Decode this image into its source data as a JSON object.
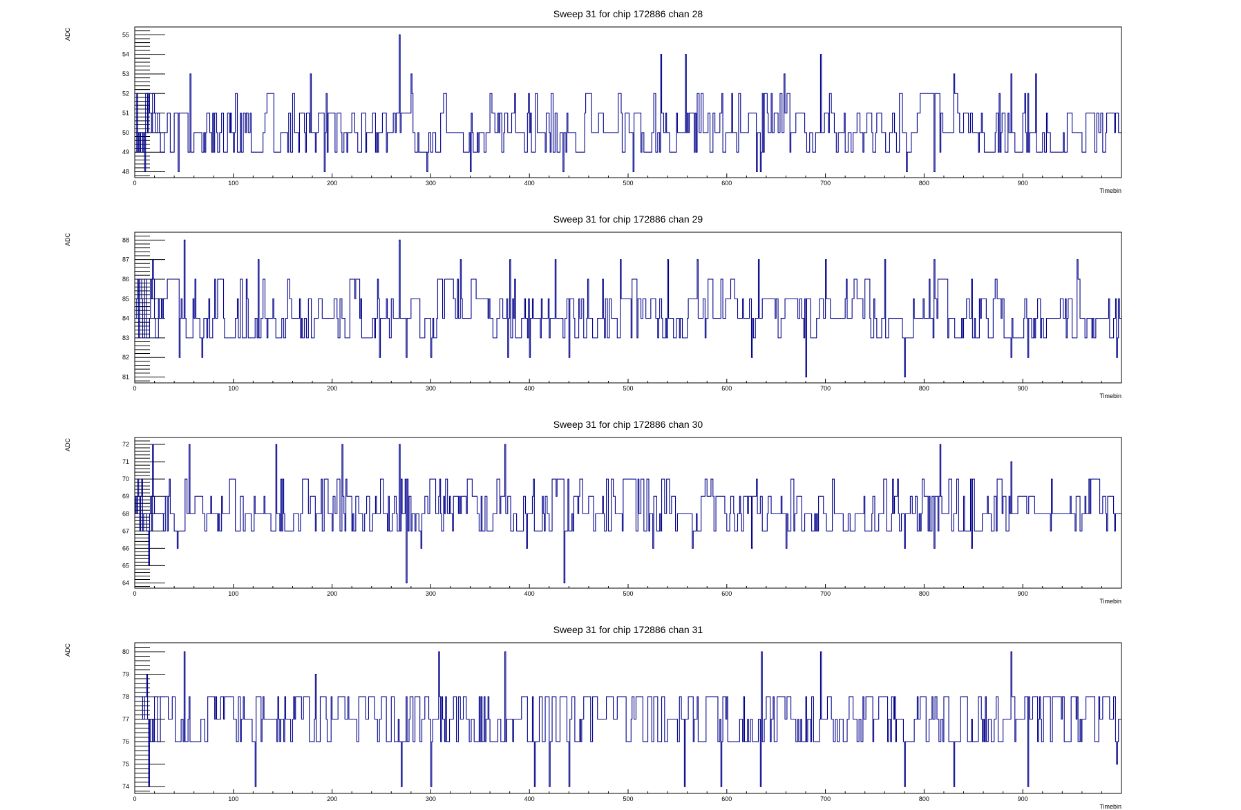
{
  "chart_data": [
    {
      "type": "line",
      "title": "Sweep 31 for chip 172886 chan 28",
      "xlabel": "Timebin",
      "ylabel": "ADC",
      "xlim": [
        0,
        1000
      ],
      "ylim": [
        47.7,
        55.4
      ],
      "x_ticks": [
        0,
        100,
        200,
        300,
        400,
        500,
        600,
        700,
        800,
        900
      ],
      "y_ticks": [
        48,
        49,
        50,
        51,
        52,
        53,
        54,
        55
      ],
      "color": "#00008b",
      "step": true,
      "baseline": 50,
      "levels": [
        49,
        50,
        51,
        52
      ],
      "spikes": [
        {
          "x": 3,
          "value": 49
        },
        {
          "x": 10,
          "value": 48
        },
        {
          "x": 18,
          "value": 52
        },
        {
          "x": 44,
          "value": 48
        },
        {
          "x": 56,
          "value": 53
        },
        {
          "x": 124,
          "value": 49
        },
        {
          "x": 155,
          "value": 49
        },
        {
          "x": 178,
          "value": 53
        },
        {
          "x": 192,
          "value": 48
        },
        {
          "x": 268,
          "value": 55
        },
        {
          "x": 280,
          "value": 53
        },
        {
          "x": 296,
          "value": 48
        },
        {
          "x": 340,
          "value": 48
        },
        {
          "x": 434,
          "value": 48
        },
        {
          "x": 505,
          "value": 48
        },
        {
          "x": 533,
          "value": 54
        },
        {
          "x": 558,
          "value": 54
        },
        {
          "x": 630,
          "value": 48
        },
        {
          "x": 634,
          "value": 48
        },
        {
          "x": 658,
          "value": 53
        },
        {
          "x": 695,
          "value": 54
        },
        {
          "x": 782,
          "value": 48
        },
        {
          "x": 810,
          "value": 48
        },
        {
          "x": 830,
          "value": 53
        },
        {
          "x": 888,
          "value": 53
        },
        {
          "x": 913,
          "value": 53
        },
        {
          "x": 975,
          "value": 51
        }
      ]
    },
    {
      "type": "line",
      "title": "Sweep 31 for chip 172886 chan 29",
      "xlabel": "Timebin",
      "ylabel": "ADC",
      "xlim": [
        0,
        1000
      ],
      "ylim": [
        80.7,
        88.4
      ],
      "x_ticks": [
        0,
        100,
        200,
        300,
        400,
        500,
        600,
        700,
        800,
        900
      ],
      "y_ticks": [
        81,
        82,
        83,
        84,
        85,
        86,
        87,
        88
      ],
      "color": "#00008b",
      "step": true,
      "baseline": 84,
      "levels": [
        83,
        84,
        85,
        86
      ],
      "spikes": [
        {
          "x": 5,
          "value": 86
        },
        {
          "x": 18,
          "value": 87
        },
        {
          "x": 45,
          "value": 82
        },
        {
          "x": 50,
          "value": 88
        },
        {
          "x": 68,
          "value": 82
        },
        {
          "x": 125,
          "value": 87
        },
        {
          "x": 248,
          "value": 82
        },
        {
          "x": 268,
          "value": 88
        },
        {
          "x": 275,
          "value": 82
        },
        {
          "x": 300,
          "value": 82
        },
        {
          "x": 330,
          "value": 87
        },
        {
          "x": 378,
          "value": 82
        },
        {
          "x": 380,
          "value": 87
        },
        {
          "x": 400,
          "value": 82
        },
        {
          "x": 426,
          "value": 87
        },
        {
          "x": 440,
          "value": 82
        },
        {
          "x": 492,
          "value": 87
        },
        {
          "x": 540,
          "value": 87
        },
        {
          "x": 570,
          "value": 87
        },
        {
          "x": 625,
          "value": 82
        },
        {
          "x": 632,
          "value": 87
        },
        {
          "x": 680,
          "value": 81
        },
        {
          "x": 700,
          "value": 87
        },
        {
          "x": 780,
          "value": 81
        },
        {
          "x": 760,
          "value": 87
        },
        {
          "x": 810,
          "value": 87
        },
        {
          "x": 888,
          "value": 82
        },
        {
          "x": 905,
          "value": 82
        },
        {
          "x": 955,
          "value": 87
        },
        {
          "x": 995,
          "value": 82
        }
      ]
    },
    {
      "type": "line",
      "title": "Sweep 31 for chip 172886 chan 30",
      "xlabel": "Timebin",
      "ylabel": "ADC",
      "xlim": [
        0,
        1000
      ],
      "ylim": [
        63.7,
        72.4
      ],
      "x_ticks": [
        0,
        100,
        200,
        300,
        400,
        500,
        600,
        700,
        800,
        900
      ],
      "y_ticks": [
        64,
        65,
        66,
        67,
        68,
        69,
        70,
        71,
        72
      ],
      "color": "#00008b",
      "step": true,
      "baseline": 68,
      "levels": [
        67,
        68,
        69,
        70
      ],
      "spikes": [
        {
          "x": 14,
          "value": 65
        },
        {
          "x": 18,
          "value": 72
        },
        {
          "x": 43,
          "value": 66
        },
        {
          "x": 55,
          "value": 72
        },
        {
          "x": 143,
          "value": 72
        },
        {
          "x": 210,
          "value": 72
        },
        {
          "x": 268,
          "value": 72
        },
        {
          "x": 275,
          "value": 64
        },
        {
          "x": 290,
          "value": 66
        },
        {
          "x": 375,
          "value": 72
        },
        {
          "x": 397,
          "value": 66
        },
        {
          "x": 435,
          "value": 64
        },
        {
          "x": 525,
          "value": 66
        },
        {
          "x": 565,
          "value": 66
        },
        {
          "x": 625,
          "value": 66
        },
        {
          "x": 660,
          "value": 66
        },
        {
          "x": 780,
          "value": 66
        },
        {
          "x": 810,
          "value": 66
        },
        {
          "x": 816,
          "value": 72
        },
        {
          "x": 848,
          "value": 66
        },
        {
          "x": 888,
          "value": 71
        },
        {
          "x": 985,
          "value": 67
        }
      ]
    },
    {
      "type": "line",
      "title": "Sweep 31 for chip 172886 chan 31",
      "xlabel": "Timebin",
      "ylabel": "ADC",
      "xlim": [
        0,
        1000
      ],
      "ylim": [
        73.7,
        80.4
      ],
      "x_ticks": [
        0,
        100,
        200,
        300,
        400,
        500,
        600,
        700,
        800,
        900
      ],
      "y_ticks": [
        74,
        75,
        76,
        77,
        78,
        79,
        80
      ],
      "color": "#00008b",
      "step": true,
      "baseline": 77,
      "levels": [
        76,
        77,
        78
      ],
      "spikes": [
        {
          "x": 12,
          "value": 79
        },
        {
          "x": 14,
          "value": 74
        },
        {
          "x": 50,
          "value": 80
        },
        {
          "x": 122,
          "value": 74
        },
        {
          "x": 183,
          "value": 79
        },
        {
          "x": 270,
          "value": 74
        },
        {
          "x": 300,
          "value": 74
        },
        {
          "x": 308,
          "value": 80
        },
        {
          "x": 375,
          "value": 80
        },
        {
          "x": 405,
          "value": 74
        },
        {
          "x": 420,
          "value": 74
        },
        {
          "x": 440,
          "value": 74
        },
        {
          "x": 557,
          "value": 74
        },
        {
          "x": 594,
          "value": 74
        },
        {
          "x": 634,
          "value": 74
        },
        {
          "x": 635,
          "value": 80
        },
        {
          "x": 695,
          "value": 80
        },
        {
          "x": 780,
          "value": 74
        },
        {
          "x": 830,
          "value": 74
        },
        {
          "x": 888,
          "value": 80
        },
        {
          "x": 905,
          "value": 74
        },
        {
          "x": 995,
          "value": 75
        }
      ]
    }
  ]
}
